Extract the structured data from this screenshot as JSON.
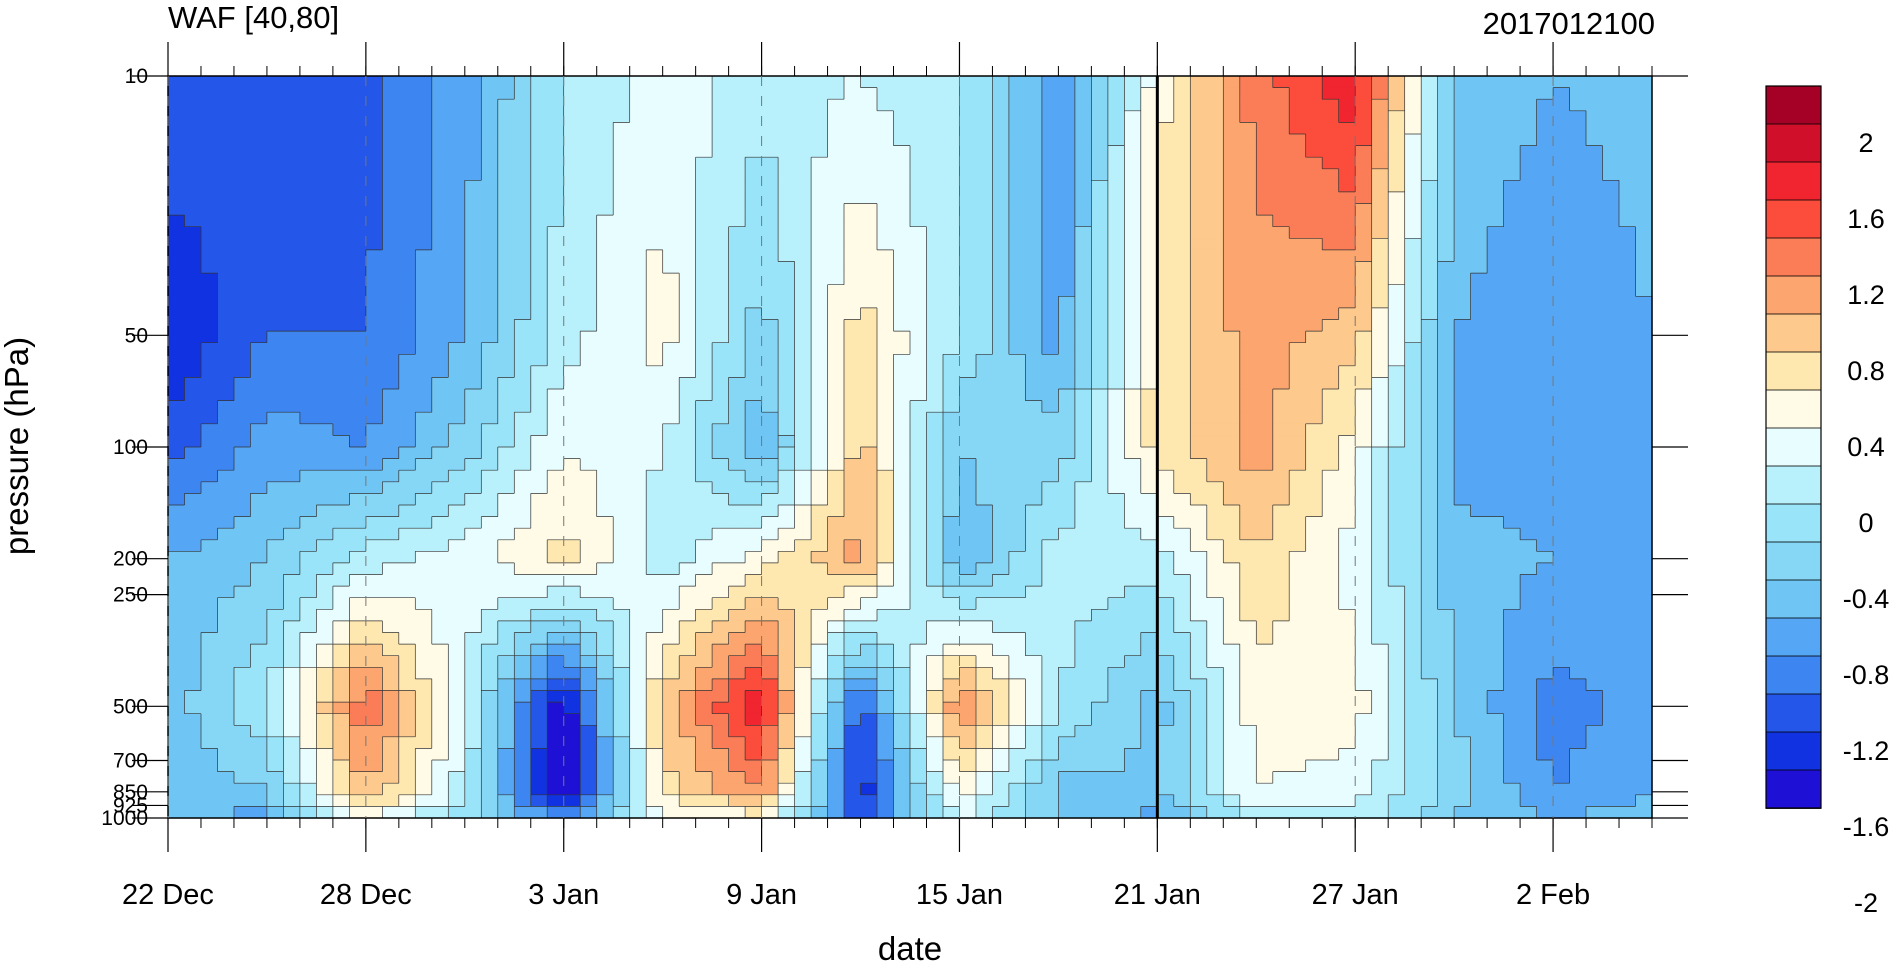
{
  "chart_data": {
    "type": "heatmap",
    "title": "WAF [40,80]",
    "subtitle": "2017012100",
    "xlabel": "date",
    "ylabel": "pressure (hPa)",
    "y_scale": "log",
    "y_reversed": true,
    "ylim": [
      1000,
      10
    ],
    "x_tick_labels": [
      "22 Dec",
      "28 Dec",
      "3 Jan",
      "9 Jan",
      "15 Jan",
      "21 Jan",
      "27 Jan",
      "2 Feb"
    ],
    "x_tick_day_offsets": [
      0,
      6,
      12,
      18,
      24,
      30,
      36,
      42
    ],
    "x_range_days": [
      0,
      45
    ],
    "reference_line_day": 30,
    "y_tick_labels": [
      "10",
      "50",
      "100",
      "200",
      "250",
      "500",
      "700",
      "850",
      "925",
      "1000"
    ],
    "y_tick_values": [
      10,
      50,
      100,
      200,
      250,
      500,
      700,
      850,
      925,
      1000
    ],
    "colorbar": {
      "labels": [
        "2",
        "1.6",
        "1.2",
        "0.8",
        "0.4",
        "0",
        "-0.4",
        "-0.8",
        "-1.2",
        "-1.6",
        "-2"
      ],
      "colors": [
        "#a50026",
        "#d0102a",
        "#f02530",
        "#fb4c3c",
        "#fb7d58",
        "#fca56e",
        "#fdc98c",
        "#fee8b0",
        "#fffbe6",
        "#e8fdff",
        "#b8f1fb",
        "#99e4f9",
        "#86d6f6",
        "#6fc6f4",
        "#56a6f6",
        "#3d86f2",
        "#2456ea",
        "#1132e0",
        "#1e10d4"
      ]
    },
    "grid_x": [
      0,
      3,
      6,
      9,
      12,
      15,
      18,
      21,
      24,
      27,
      30,
      33,
      36,
      39,
      42,
      45
    ],
    "grid_p": [
      10,
      50,
      100,
      200,
      500,
      850,
      1000
    ],
    "values": [
      [
        -0.9,
        -1.1,
        -1.0,
        -0.6,
        0.1,
        0.4,
        0.2,
        0.3,
        0.1,
        -0.7,
        0.6,
        1.4,
        1.9,
        -0.3,
        -0.5,
        -0.4
      ],
      [
        -1.3,
        -0.9,
        -0.9,
        -0.5,
        0.2,
        0.6,
        -0.2,
        0.8,
        0.1,
        -0.6,
        0.8,
        1.2,
        1.0,
        -0.5,
        -0.7,
        -0.5
      ],
      [
        -1.0,
        -0.6,
        -0.7,
        -0.2,
        0.5,
        0.3,
        -0.5,
        1.0,
        -0.3,
        -0.2,
        0.8,
        1.2,
        0.6,
        -0.6,
        -0.6,
        -0.5
      ],
      [
        -0.5,
        -0.3,
        0.2,
        0.4,
        0.8,
        0.2,
        0.6,
        1.2,
        -0.5,
        0.2,
        0.2,
        0.9,
        0.4,
        -0.4,
        -0.5,
        -0.5
      ],
      [
        -0.4,
        0.1,
        1.5,
        0.3,
        -1.5,
        1.0,
        1.9,
        -1.1,
        1.4,
        0.1,
        -0.4,
        0.6,
        0.6,
        -0.3,
        -0.8,
        -0.6
      ],
      [
        -0.5,
        -0.3,
        1.1,
        0.2,
        -1.6,
        0.8,
        1.3,
        -1.3,
        0.6,
        -0.4,
        -0.3,
        0.5,
        0.4,
        -0.2,
        -0.7,
        -0.5
      ],
      [
        -0.4,
        -0.6,
        0.5,
        0.0,
        -0.7,
        0.4,
        0.6,
        -1.0,
        0.3,
        -0.3,
        -0.6,
        0.2,
        0.2,
        -0.3,
        -0.5,
        -0.4
      ]
    ]
  }
}
